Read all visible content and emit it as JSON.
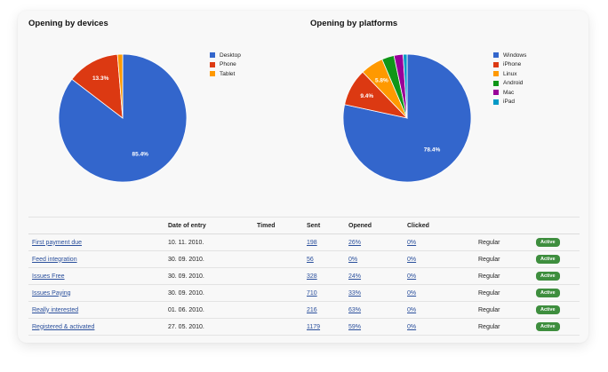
{
  "chart_data": [
    {
      "type": "pie",
      "title": "Opening by devices",
      "categories": [
        "Desktop",
        "Phone",
        "Tablet"
      ],
      "values": [
        85.4,
        13.3,
        1.3
      ],
      "labels": [
        "85.4%",
        "13.3%",
        ""
      ],
      "colors": [
        "#3366cc",
        "#dc3912",
        "#ff9900"
      ],
      "legend": "right"
    },
    {
      "type": "pie",
      "title": "Opening by platforms",
      "categories": [
        "Windows",
        "iPhone",
        "Linux",
        "Android",
        "Mac",
        "iPad"
      ],
      "values": [
        78.4,
        9.4,
        5.8,
        3.1,
        2.3,
        1.0
      ],
      "labels": [
        "78.4%",
        "9.4%",
        "5.8%",
        "",
        "",
        ""
      ],
      "colors": [
        "#3366cc",
        "#dc3912",
        "#ff9900",
        "#109618",
        "#990099",
        "#0099c6"
      ],
      "legend": "right"
    }
  ],
  "table": {
    "headers": [
      "",
      "Date of entry",
      "Timed",
      "Sent",
      "Opened",
      "Clicked",
      "",
      ""
    ],
    "rows": [
      {
        "name": "First payment due",
        "date": "10. 11. 2010.",
        "timed": "",
        "sent": "198",
        "opened": "26%",
        "clicked": "0%",
        "type": "Regular",
        "status": "Active"
      },
      {
        "name": "Feed integration",
        "date": "30. 09. 2010.",
        "timed": "",
        "sent": "56",
        "opened": "0%",
        "clicked": "0%",
        "type": "Regular",
        "status": "Active"
      },
      {
        "name": "Issues Free",
        "date": "30. 09. 2010.",
        "timed": "",
        "sent": "328",
        "opened": "24%",
        "clicked": "0%",
        "type": "Regular",
        "status": "Active"
      },
      {
        "name": "Issues Paying",
        "date": "30. 09. 2010.",
        "timed": "",
        "sent": "710",
        "opened": "33%",
        "clicked": "0%",
        "type": "Regular",
        "status": "Active"
      },
      {
        "name": "Really interested",
        "date": "01. 06. 2010.",
        "timed": "",
        "sent": "216",
        "opened": "63%",
        "clicked": "0%",
        "type": "Regular",
        "status": "Active"
      },
      {
        "name": "Registered & activated",
        "date": "27. 05. 2010.",
        "timed": "",
        "sent": "1179",
        "opened": "59%",
        "clicked": "0%",
        "type": "Regular",
        "status": "Active"
      }
    ],
    "status_color": "#3e8e3e"
  }
}
